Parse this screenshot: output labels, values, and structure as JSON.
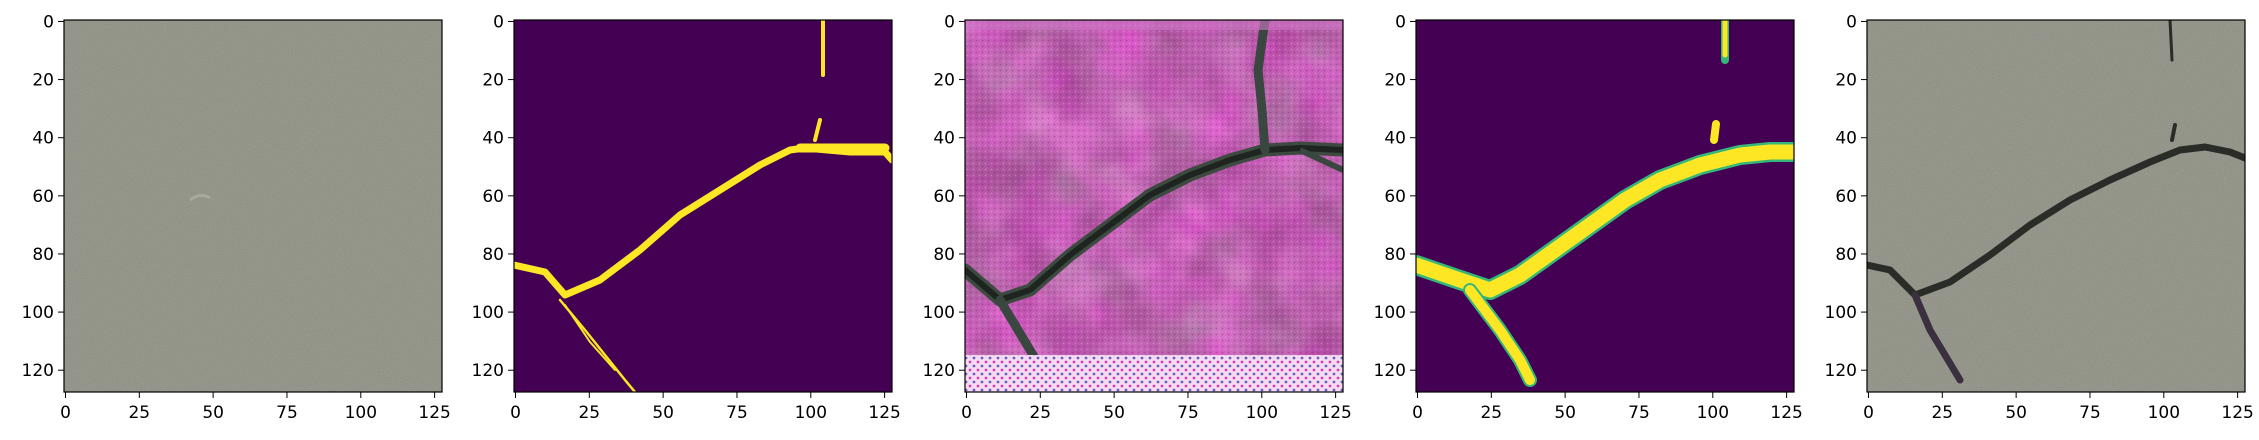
{
  "figure": {
    "panels": [
      {
        "id": "original-image"
      },
      {
        "id": "ground-truth-mask"
      },
      {
        "id": "generated-image"
      },
      {
        "id": "predicted-mask"
      },
      {
        "id": "overlay-result"
      }
    ],
    "x_ticks": [
      "0",
      "25",
      "50",
      "75",
      "100",
      "125"
    ],
    "y_ticks": [
      "0",
      "20",
      "40",
      "60",
      "80",
      "100",
      "120"
    ],
    "colors": {
      "asphalt": "#8a8b7e",
      "mask_background": "#440154",
      "mask_crack": "#fde725",
      "pink_texture": "#a0428f",
      "crack_dark": "#2a2c28"
    }
  }
}
